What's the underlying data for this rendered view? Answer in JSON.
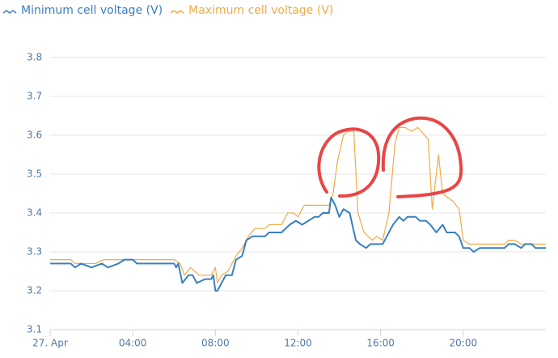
{
  "chart_data": {
    "type": "line",
    "grid": true,
    "xlim": [
      0,
      24
    ],
    "xticks": [
      {
        "value": 0,
        "label": "27. Apr"
      },
      {
        "value": 4,
        "label": "04:00"
      },
      {
        "value": 8,
        "label": "08:00"
      },
      {
        "value": 12,
        "label": "12:00"
      },
      {
        "value": 16,
        "label": "16:00"
      },
      {
        "value": 20,
        "label": "20:00"
      }
    ],
    "ylim": [
      3.1,
      3.8
    ],
    "yticks": [
      {
        "value": 3.1,
        "label": "3.1"
      },
      {
        "value": 3.2,
        "label": "3.2"
      },
      {
        "value": 3.3,
        "label": "3.3"
      },
      {
        "value": 3.4,
        "label": "3.4"
      },
      {
        "value": 3.5,
        "label": "3.5"
      },
      {
        "value": 3.6,
        "label": "3.6"
      },
      {
        "value": 3.7,
        "label": "3.7"
      },
      {
        "value": 3.8,
        "label": "3.8"
      }
    ],
    "series": [
      {
        "name": "Minimum cell voltage (V)",
        "color": "#3a7fc1",
        "x": [
          0,
          1,
          1.2,
          1.5,
          2,
          2.5,
          2.8,
          3.3,
          3.6,
          4,
          4.2,
          6,
          6.1,
          6.2,
          6.4,
          6.7,
          6.9,
          7.1,
          7.5,
          7.8,
          7.9,
          8.0,
          8.1,
          8.3,
          8.5,
          8.8,
          9.0,
          9.3,
          9.5,
          9.8,
          10.4,
          10.6,
          11.2,
          11.6,
          11.9,
          12.2,
          12.5,
          12.8,
          13,
          13.2,
          13.5,
          13.6,
          13.8,
          14.0,
          14.2,
          14.5,
          14.8,
          15.0,
          15.3,
          15.5,
          16.1,
          16.3,
          16.6,
          16.9,
          17.1,
          17.3,
          17.7,
          17.9,
          18.2,
          18.4,
          18.7,
          19.0,
          19.2,
          19.6,
          19.8,
          20.0,
          20.3,
          20.5,
          20.8,
          22.0,
          22.2,
          22.5,
          22.8,
          23.0,
          23.3,
          23.5,
          24
        ],
        "values": [
          3.27,
          3.27,
          3.26,
          3.27,
          3.26,
          3.27,
          3.26,
          3.27,
          3.28,
          3.28,
          3.27,
          3.27,
          3.26,
          3.27,
          3.22,
          3.24,
          3.24,
          3.22,
          3.23,
          3.23,
          3.24,
          3.2,
          3.2,
          3.22,
          3.24,
          3.24,
          3.28,
          3.29,
          3.33,
          3.34,
          3.34,
          3.35,
          3.35,
          3.37,
          3.38,
          3.37,
          3.38,
          3.39,
          3.39,
          3.4,
          3.4,
          3.44,
          3.42,
          3.39,
          3.41,
          3.4,
          3.33,
          3.32,
          3.31,
          3.32,
          3.32,
          3.34,
          3.37,
          3.39,
          3.38,
          3.39,
          3.39,
          3.38,
          3.38,
          3.37,
          3.35,
          3.37,
          3.35,
          3.35,
          3.34,
          3.31,
          3.31,
          3.3,
          3.31,
          3.31,
          3.32,
          3.32,
          3.31,
          3.32,
          3.32,
          3.31,
          3.31
        ]
      },
      {
        "name": "Maximum cell voltage (V)",
        "color": "#f0ab45",
        "x": [
          0,
          1.0,
          1.2,
          2.2,
          2.6,
          3.0,
          6.0,
          6.3,
          6.5,
          6.8,
          7.2,
          7.8,
          8.0,
          8.1,
          8.3,
          8.6,
          9.0,
          9.3,
          9.6,
          9.9,
          10.4,
          10.6,
          11.2,
          11.5,
          11.8,
          12.0,
          12.3,
          13.5,
          13.7,
          13.9,
          14.2,
          14.4,
          14.7,
          14.9,
          15.2,
          15.4,
          15.6,
          15.8,
          16.1,
          16.4,
          16.7,
          16.9,
          17.2,
          17.5,
          17.8,
          18.3,
          18.5,
          18.8,
          19.0,
          19.5,
          19.8,
          20.0,
          20.3,
          22.0,
          22.2,
          22.5,
          22.8,
          24
        ],
        "values": [
          3.28,
          3.28,
          3.27,
          3.27,
          3.28,
          3.28,
          3.28,
          3.27,
          3.24,
          3.26,
          3.24,
          3.24,
          3.26,
          3.22,
          3.24,
          3.25,
          3.29,
          3.31,
          3.34,
          3.36,
          3.36,
          3.37,
          3.37,
          3.4,
          3.4,
          3.39,
          3.42,
          3.42,
          3.45,
          3.53,
          3.6,
          3.61,
          3.61,
          3.4,
          3.35,
          3.34,
          3.33,
          3.34,
          3.33,
          3.4,
          3.58,
          3.62,
          3.62,
          3.61,
          3.62,
          3.59,
          3.41,
          3.55,
          3.45,
          3.43,
          3.41,
          3.33,
          3.32,
          3.32,
          3.33,
          3.33,
          3.32,
          3.32
        ]
      }
    ]
  }
}
